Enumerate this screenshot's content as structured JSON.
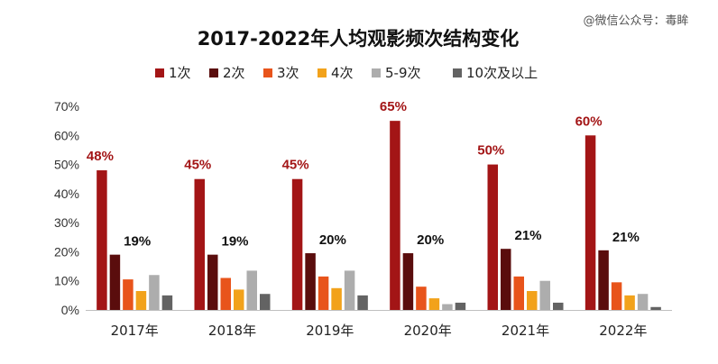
{
  "watermark": "@微信公众号：毒眸",
  "chart_data": {
    "type": "bar",
    "title": "2017-2022年人均观影频次结构变化",
    "categories": [
      "2017年",
      "2018年",
      "2019年",
      "2020年",
      "2021年",
      "2022年"
    ],
    "ylim": [
      0,
      70
    ],
    "yticks": [
      "0%",
      "10%",
      "20%",
      "30%",
      "40%",
      "50%",
      "60%",
      "70%"
    ],
    "grid": false,
    "legend_position": "top",
    "series": [
      {
        "name": "1次",
        "color": "#a31516",
        "values": [
          48,
          45,
          45,
          65,
          50,
          60
        ],
        "labels": [
          "48%",
          "45%",
          "45%",
          "65%",
          "50%",
          "60%"
        ]
      },
      {
        "name": "2次",
        "color": "#5a0d0d",
        "values": [
          19,
          19,
          19.5,
          19.5,
          21,
          20.5
        ],
        "labels": [
          "19%",
          "19%",
          "20%",
          "20%",
          "21%",
          "21%"
        ]
      },
      {
        "name": "3次",
        "color": "#e8541b",
        "values": [
          10.5,
          11,
          11.5,
          8,
          11.5,
          9.5
        ]
      },
      {
        "name": "4次",
        "color": "#f2a21b",
        "values": [
          6.5,
          7,
          7.5,
          4,
          6.5,
          5
        ]
      },
      {
        "name": "5-9次",
        "color": "#adadad",
        "values": [
          12,
          13.5,
          13.5,
          2,
          10,
          5.5
        ]
      },
      {
        "name": "10次及以上",
        "color": "#636363",
        "values": [
          5,
          5.5,
          5,
          2.5,
          2.5,
          1
        ]
      }
    ]
  }
}
